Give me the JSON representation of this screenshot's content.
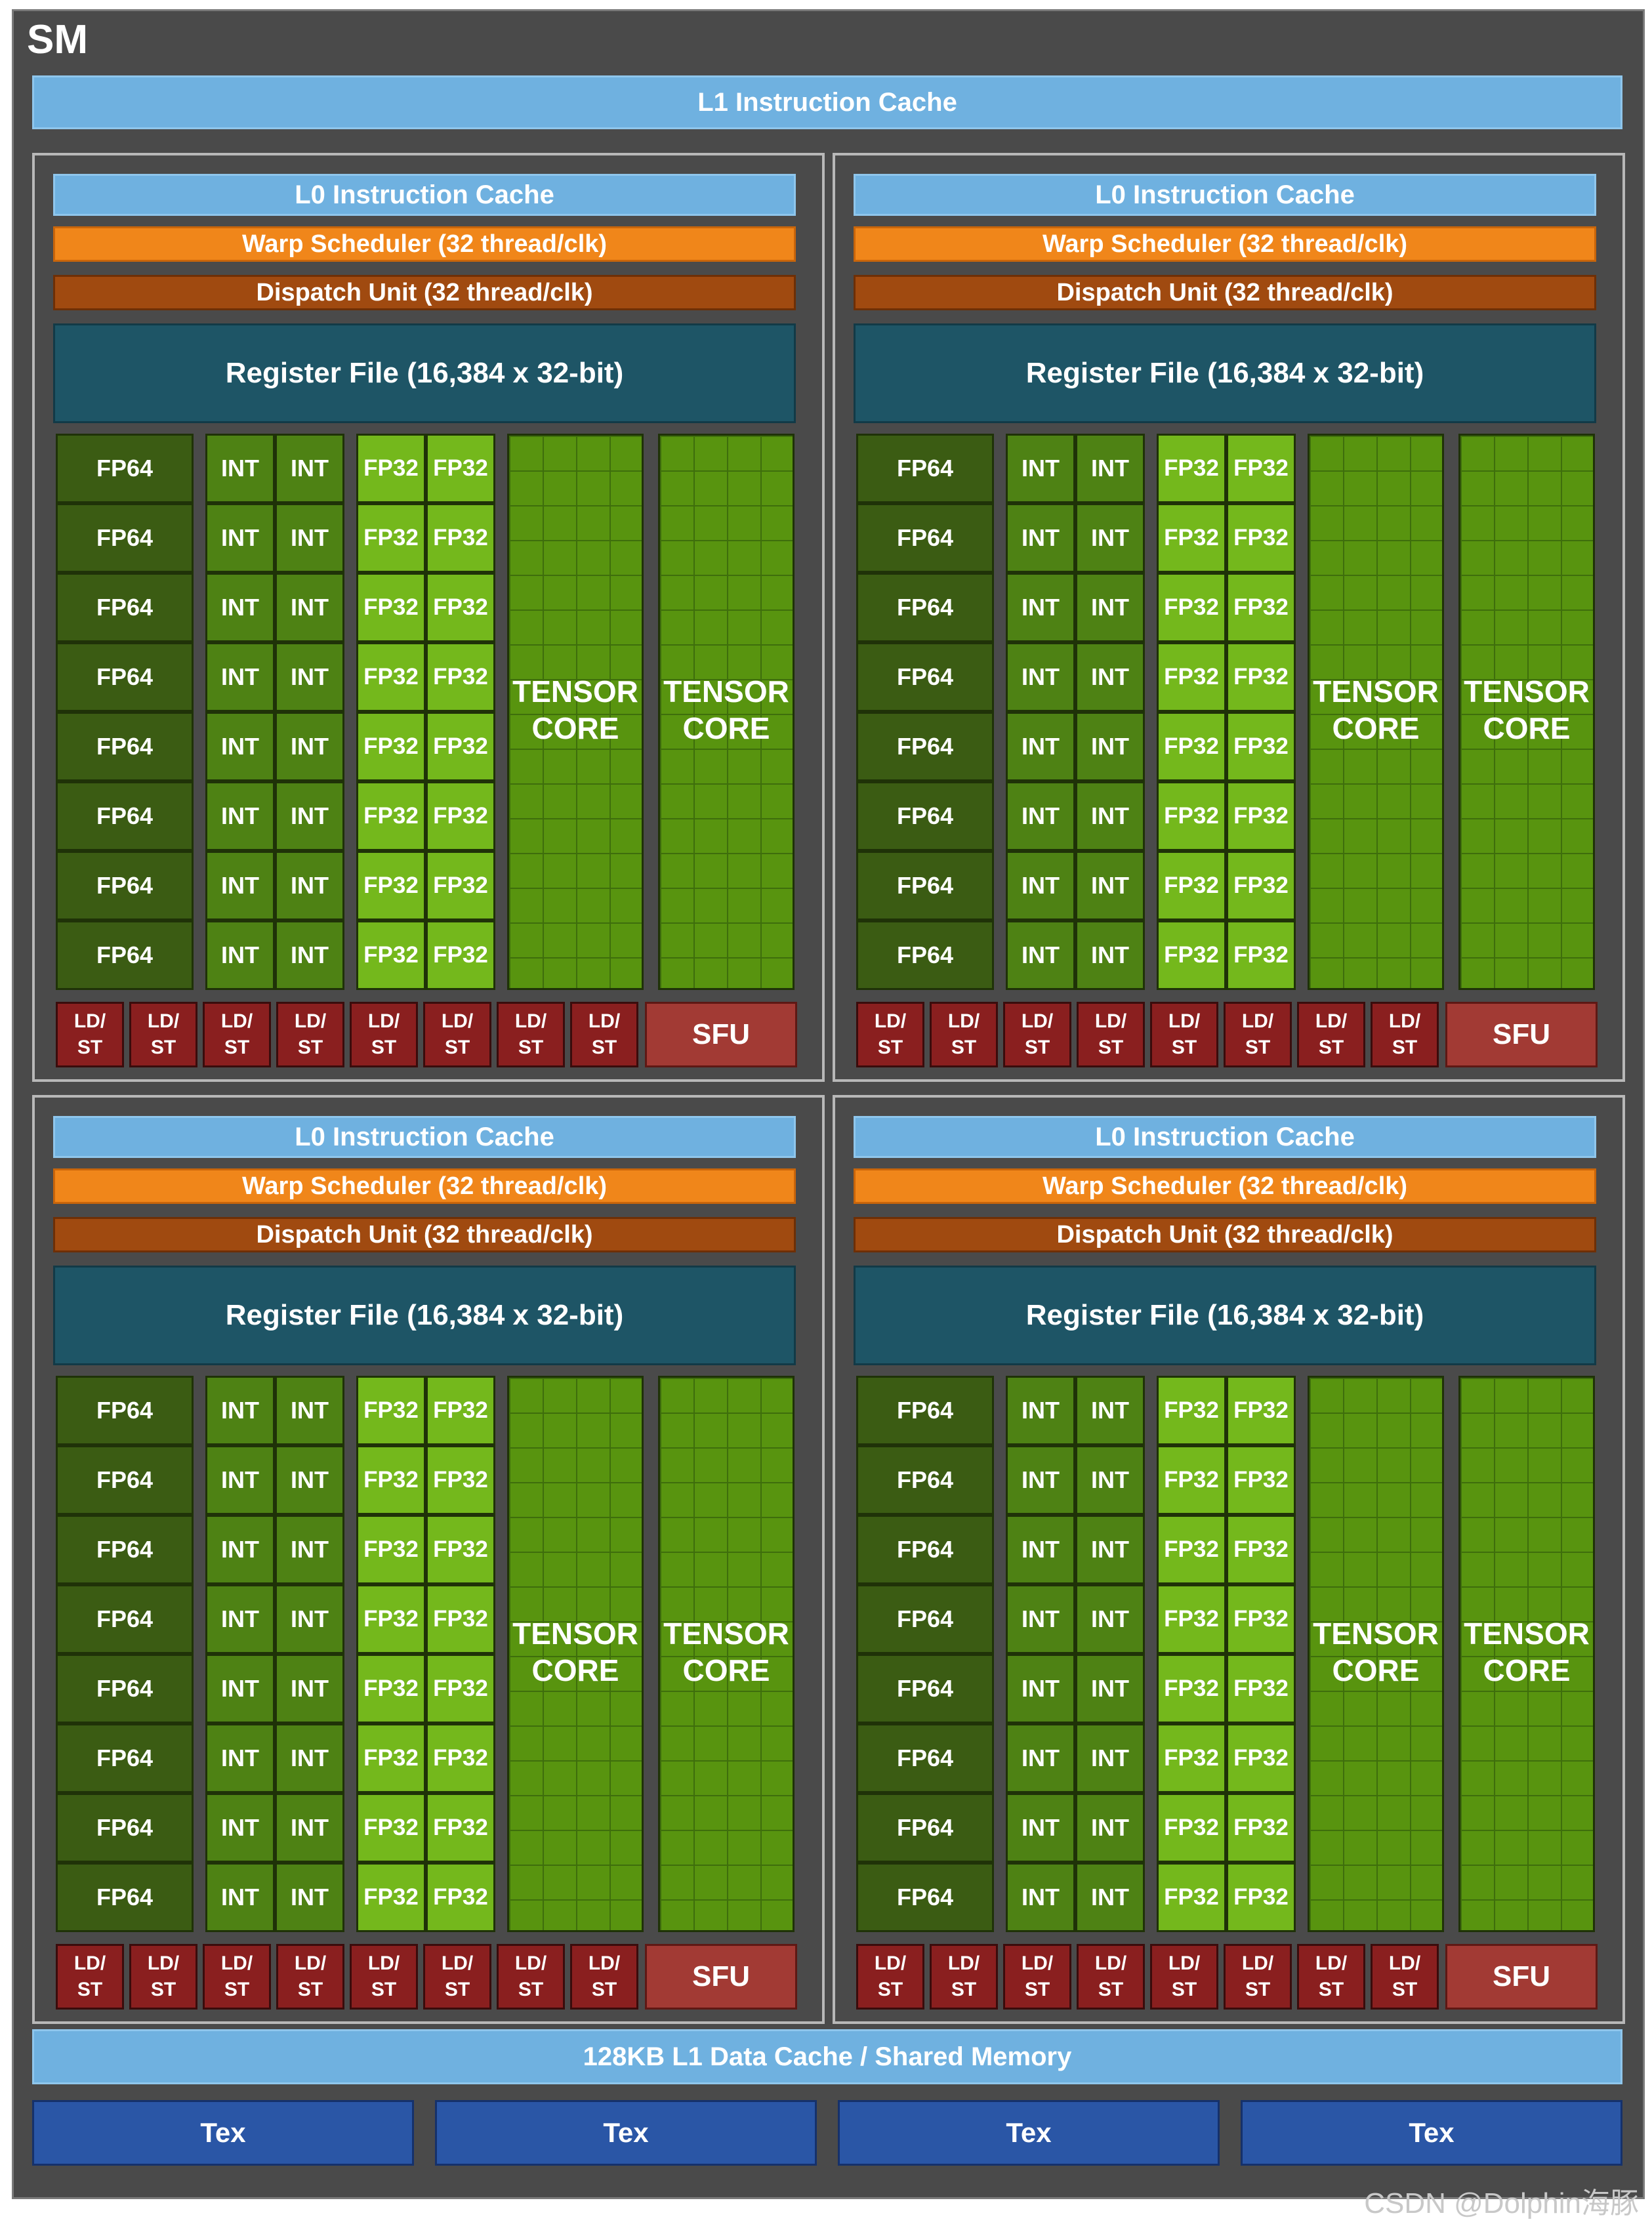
{
  "sm": {
    "title": "SM",
    "l1_instruction_cache": "L1 Instruction Cache",
    "l1_data_cache": "128KB L1 Data Cache / Shared Memory",
    "tex_units": [
      "Tex",
      "Tex",
      "Tex",
      "Tex"
    ]
  },
  "partition": {
    "l0_cache": "L0 Instruction Cache",
    "warp_scheduler": "Warp Scheduler (32 thread/clk)",
    "dispatch_unit": "Dispatch Unit (32 thread/clk)",
    "register_file": "Register File (16,384 x 32-bit)",
    "fp64_label": "FP64",
    "int_label": "INT",
    "fp32_label": "FP32",
    "tensor_core_label": "TENSOR\nCORE",
    "ldst_label": "LD/\nST",
    "sfu_label": "SFU",
    "rows": 8,
    "ldst_units": 8
  },
  "watermark": "CSDN @Dolphin海豚",
  "colors": {
    "background": "#4a4a4a",
    "cache": "#6fb1e0",
    "warp_scheduler": "#f0861a",
    "dispatch_unit": "#a04a10",
    "register_file": "#1e5566",
    "fp64": "#3b5c13",
    "int": "#4e8214",
    "fp32": "#74b81c",
    "tensor_core": "#58940f",
    "ldst": "#8a1f1f",
    "sfu": "#a23a34",
    "tex": "#2a56a6"
  }
}
